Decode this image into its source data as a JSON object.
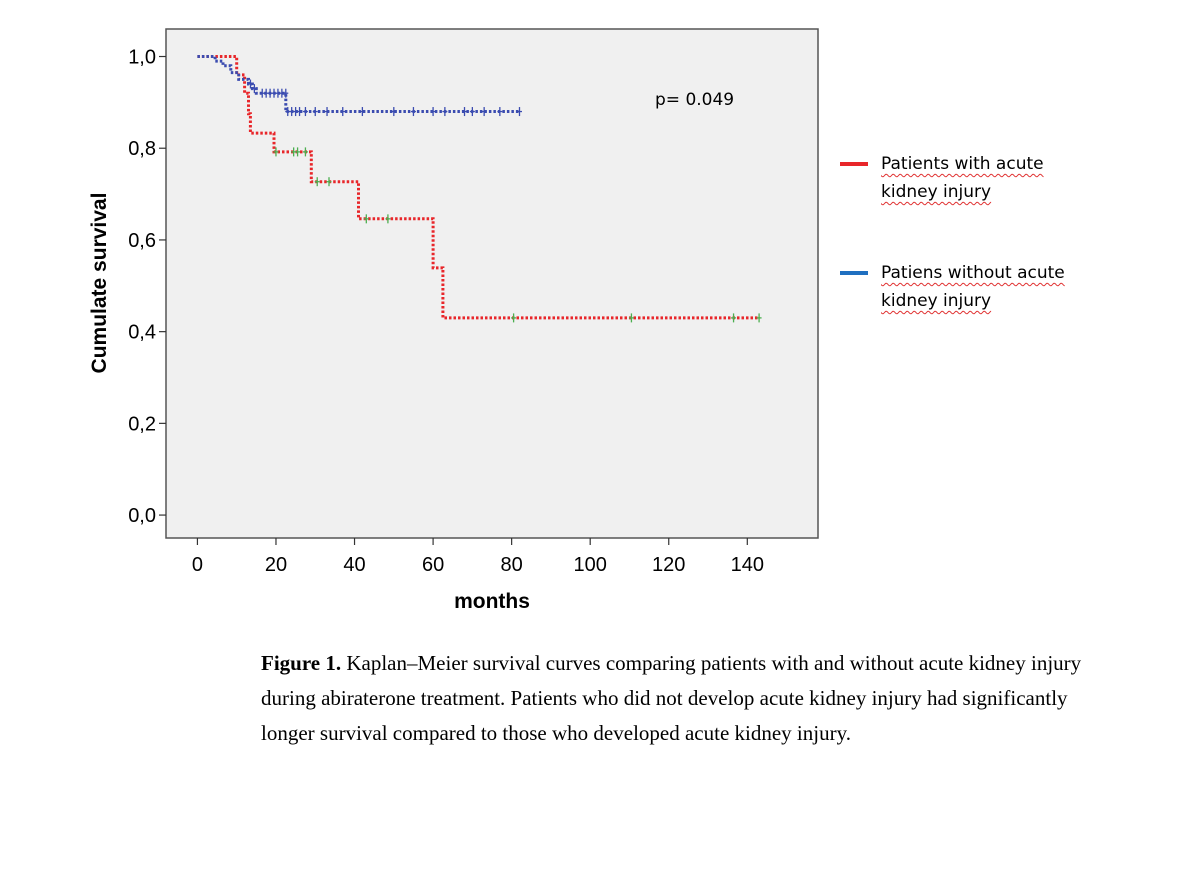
{
  "chart_data": {
    "type": "line",
    "subtype": "kaplan-meier step",
    "xlabel": "months",
    "ylabel": "Cumulate survival",
    "xlim": [
      -8,
      158
    ],
    "ylim": [
      -0.05,
      1.06
    ],
    "xticks": [
      0,
      20,
      40,
      60,
      80,
      100,
      120,
      140
    ],
    "xtick_labels": [
      "0",
      "20",
      "40",
      "60",
      "80",
      "100",
      "120",
      "140"
    ],
    "yticks": [
      0.0,
      0.2,
      0.4,
      0.6,
      0.8,
      1.0
    ],
    "ytick_labels": [
      "0,0",
      "0,2",
      "0,4",
      "0,6",
      "0,8",
      "1,0"
    ],
    "annotation": "p= 0.049",
    "series": [
      {
        "name": "Patients with acute kidney injury",
        "color": "#e8262a",
        "censor_color": "#4caf50",
        "steps": [
          [
            0,
            1.0
          ],
          [
            10,
            0.96
          ],
          [
            12,
            0.92
          ],
          [
            13,
            0.875
          ],
          [
            13.5,
            0.833
          ],
          [
            19.5,
            0.792
          ],
          [
            29,
            0.727
          ],
          [
            41,
            0.646
          ],
          [
            60,
            0.539
          ],
          [
            62.5,
            0.43
          ],
          [
            143,
            0.43
          ]
        ],
        "censored": [
          [
            20,
            0.792
          ],
          [
            24.5,
            0.792
          ],
          [
            25.5,
            0.792
          ],
          [
            27.5,
            0.792
          ],
          [
            30.5,
            0.727
          ],
          [
            33.5,
            0.727
          ],
          [
            43,
            0.646
          ],
          [
            48.5,
            0.646
          ],
          [
            80.5,
            0.43
          ],
          [
            110.5,
            0.43
          ],
          [
            136.5,
            0.43
          ],
          [
            143,
            0.43
          ]
        ]
      },
      {
        "name": "Patiens without acute kidney injury",
        "color": "#3b4cb0",
        "censor_color": "#3b4cb0",
        "steps": [
          [
            0,
            1.0
          ],
          [
            4.5,
            0.99
          ],
          [
            6.5,
            0.98
          ],
          [
            8.5,
            0.965
          ],
          [
            10.5,
            0.95
          ],
          [
            13,
            0.94
          ],
          [
            14,
            0.93
          ],
          [
            15,
            0.92
          ],
          [
            22.5,
            0.88
          ],
          [
            82,
            0.88
          ]
        ],
        "censored": [
          [
            13.5,
            0.94
          ],
          [
            14.5,
            0.93
          ],
          [
            16.5,
            0.92
          ],
          [
            17.5,
            0.92
          ],
          [
            18.5,
            0.92
          ],
          [
            19.5,
            0.92
          ],
          [
            20.5,
            0.92
          ],
          [
            21.5,
            0.92
          ],
          [
            22.5,
            0.92
          ],
          [
            23,
            0.88
          ],
          [
            24,
            0.88
          ],
          [
            25,
            0.88
          ],
          [
            26,
            0.88
          ],
          [
            27.5,
            0.88
          ],
          [
            30,
            0.88
          ],
          [
            33,
            0.88
          ],
          [
            37,
            0.88
          ],
          [
            42,
            0.88
          ],
          [
            50,
            0.88
          ],
          [
            55,
            0.88
          ],
          [
            60,
            0.88
          ],
          [
            63,
            0.88
          ],
          [
            68,
            0.88
          ],
          [
            70,
            0.88
          ],
          [
            73,
            0.88
          ],
          [
            77,
            0.88
          ],
          [
            82,
            0.88
          ]
        ]
      }
    ]
  },
  "legend": {
    "items": [
      {
        "label_line1": "Patients with acute",
        "label_line2": "kidney injury",
        "color": "#e8262a"
      },
      {
        "label_line1": "Patiens without acute",
        "label_line2": "kidney injury",
        "color": "#1f6fc0"
      }
    ]
  },
  "caption": {
    "label": "Figure 1.",
    "line1": " Kaplan–Meier survival curves comparing patients with and without acute kidney injury",
    "line2": "during abiraterone treatment. Patients who did not develop acute kidney injury had significantly",
    "line3": "longer survival compared to those who developed acute kidney injury."
  }
}
